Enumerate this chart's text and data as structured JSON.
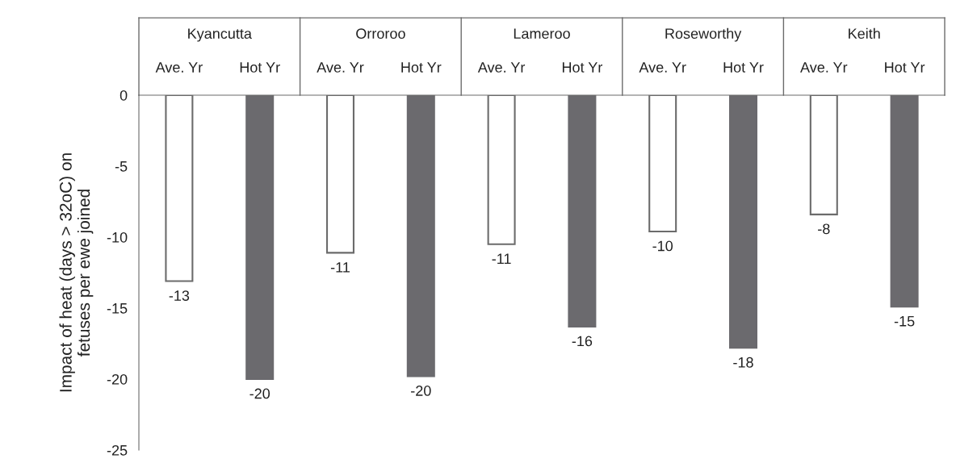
{
  "chart_data": {
    "type": "bar",
    "ylabel": "Impact of heat (days > 32oC) on\nfetuses per ewe joined",
    "categories": [
      "Kyancutta",
      "Orroroo",
      "Lameroo",
      "Roseworthy",
      "Keith"
    ],
    "series": [
      {
        "name": "Ave. Yr",
        "color": "#ffffff",
        "values": [
          -13.1,
          -11.1,
          -10.5,
          -9.6,
          -8.4
        ],
        "value_labels": [
          "-13",
          "-11",
          "-11",
          "-10",
          "-8"
        ]
      },
      {
        "name": "Hot Yr",
        "color": "#6b6a6e",
        "values": [
          -20.0,
          -19.8,
          -16.3,
          -17.8,
          -14.9
        ],
        "value_labels": [
          "-20",
          "-20",
          "-16",
          "-18",
          "-15"
        ]
      }
    ],
    "ylim": [
      -25,
      0
    ],
    "yticks": [
      0,
      -5,
      -10,
      -15,
      -20,
      -25
    ],
    "grid": false,
    "legend": false
  }
}
